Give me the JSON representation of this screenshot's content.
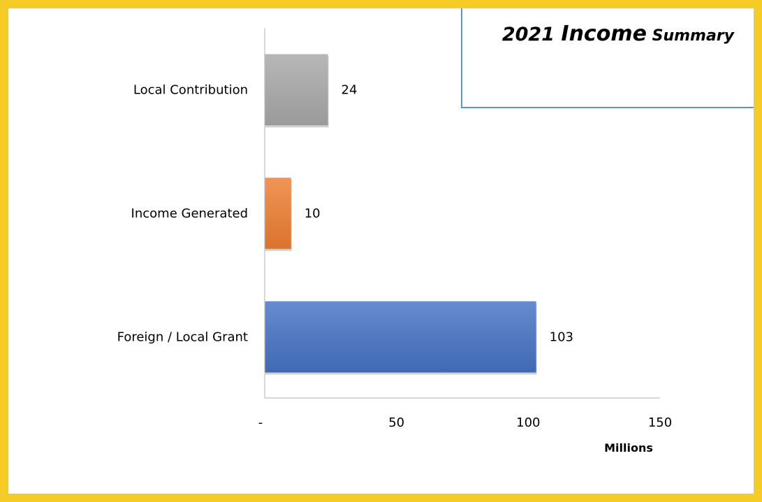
{
  "chart_data": {
    "type": "bar",
    "orientation": "horizontal",
    "title_parts": [
      "2021 ",
      "Income",
      " Summary"
    ],
    "categories": [
      "Local Contribution",
      "Income Generated",
      "Foreign / Local Grant"
    ],
    "values": [
      24,
      10,
      103
    ],
    "data_labels": [
      "24",
      "10",
      "103"
    ],
    "bar_colors": [
      "#a7a7a7",
      "#ed7d31",
      "#4472c4"
    ],
    "xlim": [
      0,
      150
    ],
    "x_ticks": [
      0,
      50,
      100,
      150
    ],
    "x_tick_labels": [
      "-",
      "50",
      "100",
      "150"
    ],
    "xlabel": "Millions",
    "ylabel": "",
    "grid": false,
    "legend": "none"
  },
  "colors": {
    "frame_border": "#f5cc25",
    "title_box_border": "#5a93d6",
    "axis_line": "#bfbfbf"
  }
}
